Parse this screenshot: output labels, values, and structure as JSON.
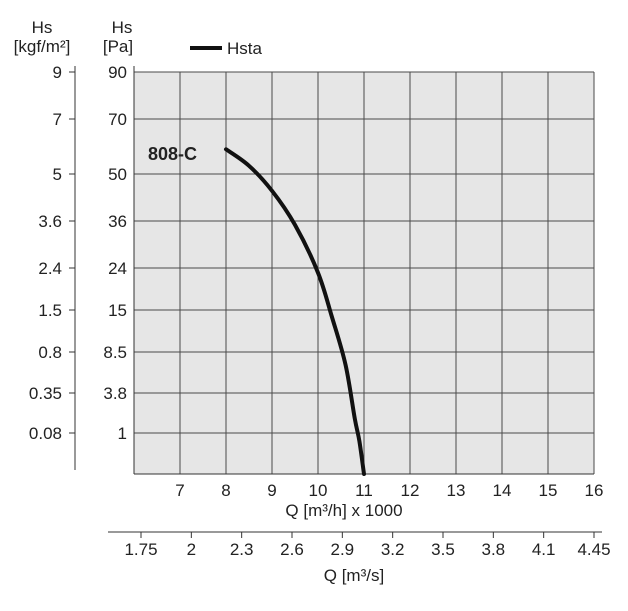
{
  "chart_data": {
    "type": "line",
    "legend": {
      "label": "Hsta",
      "position": "top-left"
    },
    "series": [
      {
        "name": "Hsta",
        "label": "808-C",
        "color": "#111111",
        "x": [
          8.0,
          8.5,
          9.0,
          9.5,
          10.0,
          10.3,
          10.6,
          10.8,
          10.9,
          11.0
        ],
        "y": [
          59,
          53,
          45,
          35,
          23,
          14,
          7,
          2,
          0.8,
          0
        ]
      }
    ],
    "y_scale_note": "nonlinear (evenly spaced tick labels)",
    "yticks_pa": [
      "90",
      "70",
      "50",
      "36",
      "24",
      "15",
      "8.5",
      "3.8",
      "1"
    ],
    "yticks_kgf": [
      "9",
      "7",
      "5",
      "3.6",
      "2.4",
      "1.5",
      "0.8",
      "0.35",
      "0.08"
    ],
    "y_title_kgf": {
      "line1": "Hs",
      "line2": "[kgf/m²]"
    },
    "y_title_pa": {
      "line1": "Hs",
      "line2": "[Pa]"
    },
    "x_ticks": [
      "7",
      "8",
      "9",
      "10",
      "11",
      "12",
      "13",
      "14",
      "15",
      "16"
    ],
    "x_title": "Q [m³/h] x 1000",
    "x2_ticks": [
      "1.75",
      "2",
      "2.3",
      "2.6",
      "2.9",
      "3.2",
      "3.5",
      "3.8",
      "4.1",
      "4.45"
    ],
    "x2_title": "Q [m³/s]",
    "xlim": [
      6,
      16
    ],
    "grid": true,
    "colors": {
      "plot_bg": "#e6e6e6",
      "grid": "#4a4a4a",
      "curve": "#111111"
    }
  }
}
